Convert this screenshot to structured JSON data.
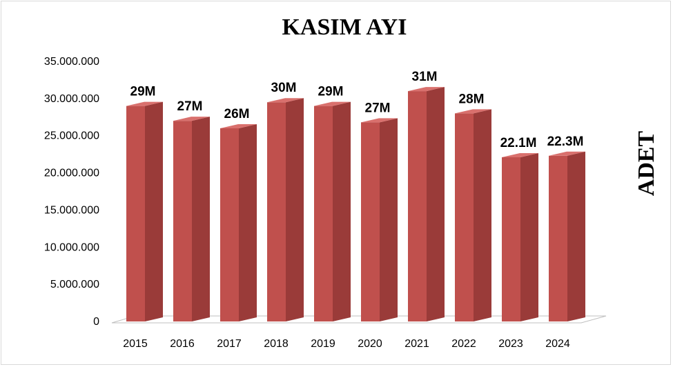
{
  "chart_data": {
    "type": "bar",
    "title": "KASIM AYI",
    "xlabel": "",
    "ylabel": "ADET",
    "categories": [
      "2015",
      "2016",
      "2017",
      "2018",
      "2019",
      "2020",
      "2021",
      "2022",
      "2023",
      "2024"
    ],
    "values": [
      29000000,
      27000000,
      26000000,
      29500000,
      29000000,
      26800000,
      31000000,
      28000000,
      22100000,
      22300000
    ],
    "data_labels": [
      "29M",
      "27M",
      "26M",
      "30M",
      "29M",
      "27M",
      "31M",
      "28M",
      "22.1M",
      "22.3M"
    ],
    "ylim": [
      0,
      35000000
    ],
    "yticks": [
      "0",
      "5.000.000",
      "10.000.000",
      "15.000.000",
      "20.000.000",
      "25.000.000",
      "30.000.000",
      "35.000.000"
    ],
    "grid": false,
    "legend": "none",
    "bar_style": "3d",
    "colors": {
      "bar_front": "#c0504d",
      "bar_side": "#9a3b39",
      "bar_top": "#d9706d",
      "floor": "#bfbfbf"
    }
  }
}
